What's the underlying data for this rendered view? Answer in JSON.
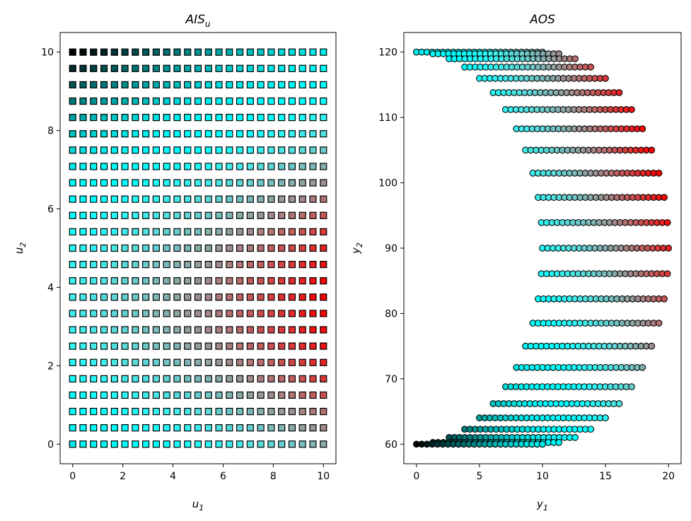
{
  "chart_data": [
    {
      "type": "scatter",
      "title_main": "AIS",
      "title_sub": "u",
      "xlabel_main": "u",
      "xlabel_sub": "1",
      "ylabel_main": "u",
      "ylabel_sub": "2",
      "xlim": [
        -0.5,
        10.5
      ],
      "ylim": [
        -0.5,
        10.5
      ],
      "xticks": [
        0,
        2,
        4,
        6,
        8,
        10
      ],
      "yticks": [
        0,
        2,
        4,
        6,
        8,
        10
      ],
      "marker": "square",
      "grid": false,
      "colormap": "rainbow",
      "grid_points": {
        "u1_start": 0,
        "u1_end": 10,
        "u1_count": 25,
        "u2_start": 0,
        "u2_end": 10,
        "u2_count": 25
      }
    },
    {
      "type": "scatter",
      "title_main": "AOS",
      "xlabel_main": "y",
      "xlabel_sub": "1",
      "ylabel_main": "y",
      "ylabel_sub": "2",
      "xlim": [
        -1,
        21
      ],
      "ylim": [
        57,
        123
      ],
      "xticks": [
        0,
        5,
        10,
        15,
        20
      ],
      "yticks": [
        60,
        70,
        80,
        90,
        100,
        110,
        120
      ],
      "marker": "circle",
      "grid": false,
      "colormap": "rainbow",
      "mapping": {
        "y1": "u1 + 10*sin(pi*u2/10)",
        "y2": "90 + 30*cos(pi*u2/10)"
      }
    }
  ]
}
